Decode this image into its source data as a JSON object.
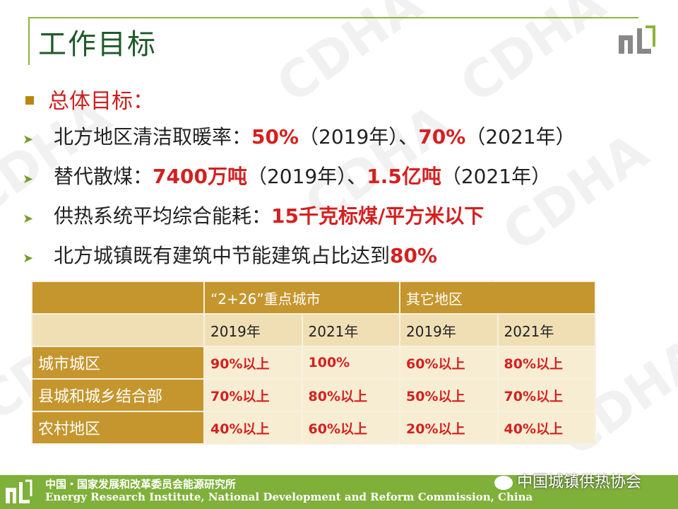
{
  "header": {
    "title": "工作目标"
  },
  "watermark": "CDHA",
  "subhead": "总体目标：",
  "goals": [
    {
      "parts": [
        {
          "t": "北方地区清洁取暖率：",
          "hl": false
        },
        {
          "t": "50%",
          "hl": true
        },
        {
          "t": "（2019年）、",
          "hl": false
        },
        {
          "t": "70%",
          "hl": true
        },
        {
          "t": "（2021年）",
          "hl": false
        }
      ]
    },
    {
      "parts": [
        {
          "t": "替代散煤：",
          "hl": false
        },
        {
          "t": "7400万吨",
          "hl": true
        },
        {
          "t": "（2019年）、",
          "hl": false
        },
        {
          "t": "1.5亿吨",
          "hl": true
        },
        {
          "t": "（2021年）",
          "hl": false
        }
      ]
    },
    {
      "parts": [
        {
          "t": "供热系统平均综合能耗：",
          "hl": false
        },
        {
          "t": "15千克标煤/平方米以下",
          "hl": true
        }
      ]
    },
    {
      "parts": [
        {
          "t": "北方城镇既有建筑中节能建筑占比达到",
          "hl": false
        },
        {
          "t": "80%",
          "hl": true
        }
      ]
    }
  ],
  "table": {
    "group_headers": [
      "“2+26”重点城市",
      "其它地区"
    ],
    "years": [
      "2019年",
      "2021年",
      "2019年",
      "2021年"
    ],
    "rows": [
      {
        "label": "城市城区",
        "values": [
          "90%以上",
          "100%",
          "60%以上",
          "80%以上"
        ]
      },
      {
        "label": "县城和城乡结合部",
        "values": [
          "70%以上",
          "80%以上",
          "50%以上",
          "70%以上"
        ]
      },
      {
        "label": "农村地区",
        "values": [
          "40%以上",
          "60%以上",
          "20%以上",
          "40%以上"
        ]
      }
    ]
  },
  "footer": {
    "org_cn": "中国・国家发展和改革委员会能源研究所",
    "org_en": "Energy Research Institute, National Development and Reform Commission, China",
    "wechat": "中国城镇供热协会"
  },
  "colors": {
    "accent_green": "#7fb03a",
    "title_green": "#1f5a2a",
    "highlight_red": "#d42020",
    "table_gold": "#c5962e"
  },
  "icons": {
    "logo": "institute-logo-icon",
    "bullet": "square-bullet-icon",
    "arrow": "arrow-bullet-icon",
    "wechat": "wechat-icon"
  }
}
